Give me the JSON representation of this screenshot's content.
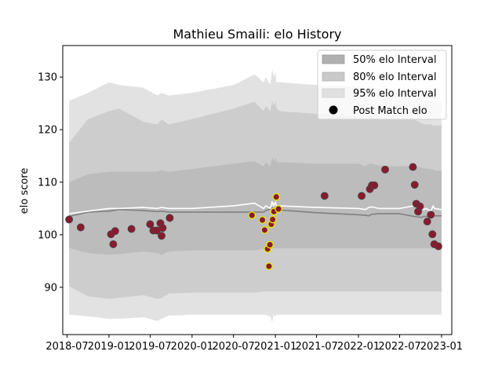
{
  "chart_data": {
    "type": "scatter",
    "title": "Mathieu Smaili: elo History",
    "xlabel": "",
    "ylabel": "elo score",
    "xlim": [
      "2018-06-12",
      "2023-02-15"
    ],
    "ylim": [
      81,
      136
    ],
    "y_ticks": [
      90,
      100,
      110,
      120,
      130
    ],
    "x_ticks": [
      {
        "date": "2018-07-01",
        "label": "2018-07"
      },
      {
        "date": "2019-01-01",
        "label": "2019-01"
      },
      {
        "date": "2019-07-01",
        "label": "2019-07"
      },
      {
        "date": "2020-01-01",
        "label": "2020-01"
      },
      {
        "date": "2020-07-01",
        "label": "2020-07"
      },
      {
        "date": "2021-01-01",
        "label": "2021-01"
      },
      {
        "date": "2021-07-01",
        "label": "2021-07"
      },
      {
        "date": "2022-01-01",
        "label": "2022-01"
      },
      {
        "date": "2022-07-01",
        "label": "2022-07"
      },
      {
        "date": "2023-01-01",
        "label": "2023-01"
      }
    ],
    "grid": false,
    "legend_position": "top-right",
    "legend": [
      {
        "label": "50% elo Interval",
        "kind": "band",
        "color": "#b0b0b0"
      },
      {
        "label": "80% elo Interval",
        "kind": "band",
        "color": "#c9c9c9"
      },
      {
        "label": "95% elo Interval",
        "kind": "band",
        "color": "#e0e0e0"
      },
      {
        "label": "Post Match elo",
        "kind": "marker",
        "color": "#000000"
      }
    ],
    "colors": {
      "band95": "#e2e2e2",
      "band80": "#cdcdcd",
      "band50": "#bcbcbc",
      "median_line": "#808080",
      "mean_line": "#ffffff",
      "dot_fill": "#8b1a2e",
      "dot_edge_normal": "#444444",
      "dot_edge_highlight": "#e8e800"
    },
    "series": [
      {
        "kind": "interval_bands",
        "x": [
          "2018-07-10",
          "2018-10-01",
          "2019-01-01",
          "2019-02-15",
          "2019-06-01",
          "2019-08-01",
          "2019-08-20",
          "2019-09-20",
          "2020-01-01",
          "2020-07-01",
          "2020-10-01",
          "2020-11-10",
          "2020-11-20",
          "2020-12-10",
          "2020-12-18",
          "2020-12-24",
          "2021-01-01",
          "2021-01-05",
          "2021-01-12",
          "2021-01-20",
          "2021-07-01",
          "2022-01-01",
          "2022-02-01",
          "2022-02-15",
          "2022-03-01",
          "2022-04-01",
          "2022-07-01",
          "2022-09-01",
          "2022-10-05",
          "2022-10-15",
          "2022-10-25",
          "2022-11-15",
          "2022-11-25",
          "2022-12-01",
          "2023-01-01"
        ],
        "mean": [
          104.0,
          104.5,
          105.0,
          105.0,
          105.2,
          105.0,
          105.2,
          105.0,
          105.0,
          105.5,
          106.0,
          105.0,
          105.5,
          105.0,
          106.3,
          105.5,
          106.2,
          105.6,
          105.3,
          105.5,
          105.2,
          105.0,
          104.8,
          105.2,
          105.3,
          105.0,
          105.0,
          105.5,
          105.0,
          104.8,
          105.0,
          104.5,
          105.5,
          105.0,
          104.8
        ],
        "median": [
          103.5,
          104.3,
          104.5,
          104.8,
          104.6,
          104.4,
          104.5,
          104.3,
          104.3,
          104.3,
          104.3,
          104.3,
          104.6,
          104.9,
          105.1,
          105.0,
          105.0,
          104.8,
          104.7,
          104.7,
          104.2,
          103.8,
          103.7,
          103.6,
          103.9,
          104.0,
          104.0,
          103.5,
          103.3,
          103.5,
          103.5,
          103.5,
          103.8,
          103.6,
          103.6
        ],
        "p50_lo": [
          97.5,
          96.5,
          96.2,
          96.3,
          96.8,
          96.5,
          96.2,
          96.8,
          97.0,
          97.0,
          97.0,
          97.3,
          97.4,
          97.4,
          97.4,
          97.4,
          97.4,
          97.4,
          97.4,
          97.4,
          97.4,
          97.4,
          97.4,
          97.4,
          97.4,
          97.4,
          97.4,
          97.4,
          97.4,
          97.4,
          97.4,
          97.4,
          97.4,
          97.4,
          97.4
        ],
        "p50_hi": [
          110.0,
          111.5,
          112.0,
          112.0,
          112.0,
          112.0,
          112.3,
          112.0,
          112.5,
          113.5,
          114.0,
          113.0,
          113.8,
          113.0,
          114.8,
          114.0,
          114.8,
          114.0,
          113.8,
          113.8,
          113.5,
          113.5,
          113.0,
          113.5,
          113.5,
          113.2,
          113.0,
          113.2,
          112.8,
          112.6,
          112.6,
          112.5,
          112.5,
          112.2,
          112.2
        ],
        "p80_lo": [
          90.2,
          88.3,
          87.8,
          88.0,
          88.5,
          87.8,
          88.0,
          88.8,
          89.0,
          89.0,
          89.0,
          89.2,
          89.2,
          89.2,
          89.2,
          89.2,
          89.2,
          89.2,
          89.2,
          89.2,
          89.2,
          89.2,
          89.2,
          89.2,
          89.2,
          89.2,
          89.2,
          89.2,
          89.2,
          89.2,
          89.2,
          89.2,
          89.2,
          89.2,
          89.2
        ],
        "p80_hi": [
          117.5,
          122.0,
          123.5,
          124.0,
          121.5,
          121.0,
          122.0,
          121.0,
          122.0,
          124.0,
          125.3,
          123.5,
          124.5,
          123.5,
          125.5,
          124.5,
          125.5,
          124.2,
          123.8,
          123.5,
          123.0,
          122.5,
          122.0,
          122.5,
          122.5,
          122.0,
          121.8,
          122.0,
          121.2,
          121.0,
          121.0,
          121.0,
          120.8,
          120.8,
          120.8
        ],
        "p95_lo": [
          84.8,
          84.5,
          84.0,
          84.0,
          84.3,
          83.6,
          84.0,
          84.6,
          84.8,
          84.8,
          84.8,
          84.8,
          84.8,
          84.4,
          83.4,
          84.8,
          84.4,
          84.8,
          84.8,
          84.8,
          84.8,
          84.8,
          84.8,
          84.8,
          84.8,
          84.8,
          84.8,
          84.8,
          84.8,
          84.8,
          84.8,
          84.8,
          84.8,
          84.8,
          84.8
        ],
        "p95_hi": [
          125.5,
          127.0,
          129.0,
          128.5,
          128.0,
          126.5,
          127.0,
          126.5,
          127.0,
          128.5,
          130.5,
          129.0,
          130.0,
          128.5,
          131.5,
          130.0,
          131.0,
          129.0,
          129.0,
          129.0,
          128.5,
          128.2,
          127.5,
          128.3,
          128.2,
          127.5,
          127.0,
          127.5,
          126.0,
          125.5,
          125.5,
          125.5,
          125.5,
          125.5,
          125.5
        ]
      },
      {
        "name": "Post Match elo",
        "kind": "points",
        "points": [
          {
            "x": "2018-07-10",
            "y": 102.9,
            "edge": "normal"
          },
          {
            "x": "2018-08-30",
            "y": 101.4,
            "edge": "normal"
          },
          {
            "x": "2019-01-10",
            "y": 100.1,
            "edge": "normal"
          },
          {
            "x": "2019-01-20",
            "y": 98.2,
            "edge": "normal"
          },
          {
            "x": "2019-01-28",
            "y": 100.7,
            "edge": "normal"
          },
          {
            "x": "2019-04-10",
            "y": 101.1,
            "edge": "normal"
          },
          {
            "x": "2019-07-01",
            "y": 102.0,
            "edge": "normal"
          },
          {
            "x": "2019-07-15",
            "y": 100.8,
            "edge": "normal"
          },
          {
            "x": "2019-07-30",
            "y": 100.8,
            "edge": "normal"
          },
          {
            "x": "2019-08-15",
            "y": 102.2,
            "edge": "normal"
          },
          {
            "x": "2019-08-25",
            "y": 101.3,
            "edge": "normal"
          },
          {
            "x": "2019-08-20",
            "y": 99.8,
            "edge": "normal"
          },
          {
            "x": "2019-09-25",
            "y": 103.2,
            "edge": "normal"
          },
          {
            "x": "2020-09-20",
            "y": 103.7,
            "edge": "highlight"
          },
          {
            "x": "2020-11-05",
            "y": 102.8,
            "edge": "highlight"
          },
          {
            "x": "2020-11-15",
            "y": 100.9,
            "edge": "highlight"
          },
          {
            "x": "2020-11-28",
            "y": 97.3,
            "edge": "highlight"
          },
          {
            "x": "2020-12-04",
            "y": 94.0,
            "edge": "highlight"
          },
          {
            "x": "2020-12-08",
            "y": 98.1,
            "edge": "highlight"
          },
          {
            "x": "2020-12-14",
            "y": 102.0,
            "edge": "highlight"
          },
          {
            "x": "2020-12-20",
            "y": 102.9,
            "edge": "highlight"
          },
          {
            "x": "2020-12-26",
            "y": 104.4,
            "edge": "highlight"
          },
          {
            "x": "2021-01-05",
            "y": 107.2,
            "edge": "highlight"
          },
          {
            "x": "2021-01-15",
            "y": 104.9,
            "edge": "highlight"
          },
          {
            "x": "2021-08-05",
            "y": 107.4,
            "edge": "normal"
          },
          {
            "x": "2022-01-15",
            "y": 107.4,
            "edge": "normal"
          },
          {
            "x": "2022-02-20",
            "y": 108.7,
            "edge": "normal"
          },
          {
            "x": "2022-03-01",
            "y": 109.4,
            "edge": "normal"
          },
          {
            "x": "2022-03-12",
            "y": 109.4,
            "edge": "normal"
          },
          {
            "x": "2022-04-28",
            "y": 112.4,
            "edge": "normal"
          },
          {
            "x": "2022-08-28",
            "y": 112.9,
            "edge": "normal"
          },
          {
            "x": "2022-09-05",
            "y": 109.5,
            "edge": "normal"
          },
          {
            "x": "2022-09-12",
            "y": 105.9,
            "edge": "normal"
          },
          {
            "x": "2022-09-20",
            "y": 104.4,
            "edge": "normal"
          },
          {
            "x": "2022-09-28",
            "y": 105.4,
            "edge": "normal"
          },
          {
            "x": "2022-10-30",
            "y": 102.5,
            "edge": "normal"
          },
          {
            "x": "2022-11-15",
            "y": 103.8,
            "edge": "normal"
          },
          {
            "x": "2022-11-22",
            "y": 100.1,
            "edge": "normal"
          },
          {
            "x": "2022-11-30",
            "y": 98.2,
            "edge": "normal"
          },
          {
            "x": "2022-12-18",
            "y": 97.8,
            "edge": "normal"
          }
        ]
      }
    ]
  }
}
